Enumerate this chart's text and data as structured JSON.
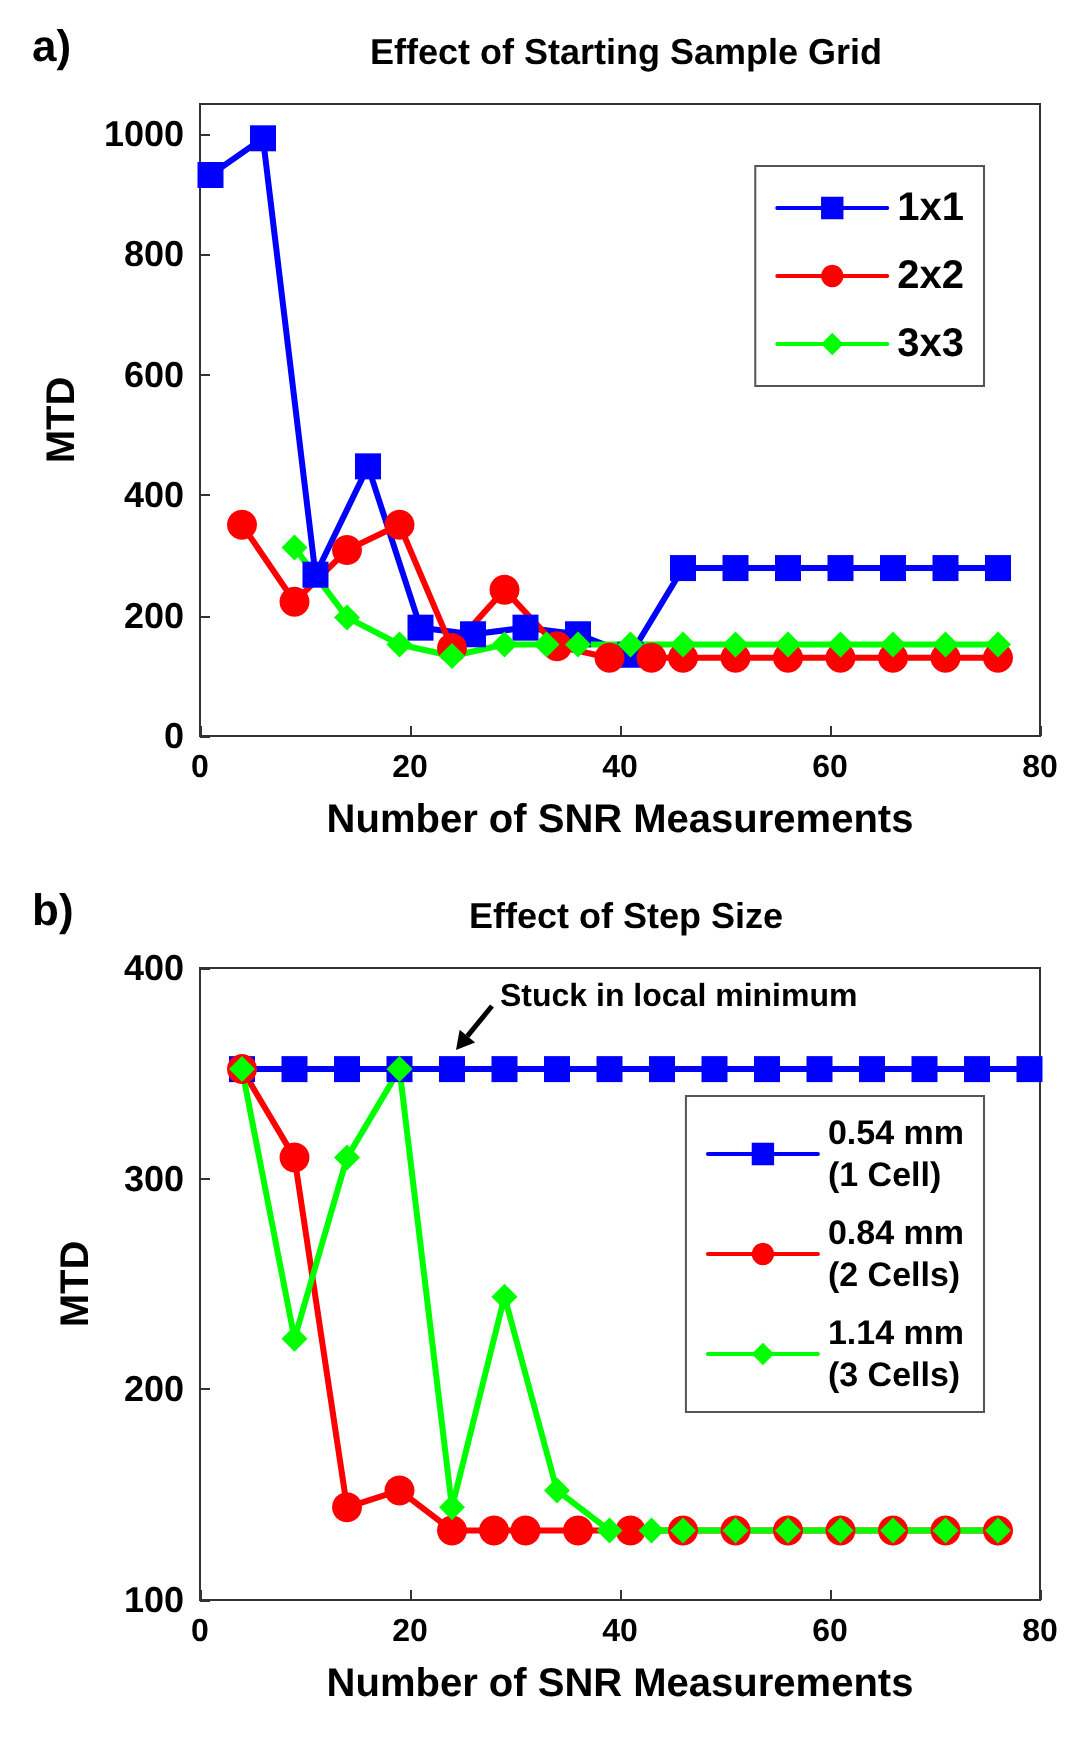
{
  "chart_data": [
    {
      "type": "line",
      "title": "Effect of Starting Sample Grid",
      "xlabel": "Number of SNR Measurements",
      "ylabel": "MTD",
      "xlim": [
        0,
        80
      ],
      "xticks": [
        0,
        20,
        40,
        60,
        80
      ],
      "ylim": [
        0,
        1050
      ],
      "yticks": [
        0,
        200,
        400,
        600,
        800,
        {
          "value": 1000,
          "label": "1000"
        }
      ],
      "grid": false,
      "legend": "top right",
      "annotations": [
        "a)"
      ],
      "series": [
        {
          "name": "1x1",
          "color": "#0000ff",
          "marker": "square",
          "x": [
            1,
            6,
            11,
            16,
            21,
            26,
            31,
            36,
            41,
            46,
            51,
            56,
            61,
            66,
            71,
            76
          ],
          "values": [
            932,
            993,
            268,
            448,
            180,
            169,
            180,
            169,
            135,
            279,
            279,
            279,
            279,
            279,
            279,
            279
          ]
        },
        {
          "name": "2x2",
          "color": "#ff0000",
          "marker": "circle",
          "x": [
            4,
            9,
            14,
            19,
            24,
            29,
            34,
            39,
            43,
            46,
            51,
            56,
            61,
            66,
            71,
            76
          ],
          "values": [
            351,
            223,
            309,
            351,
            146,
            243,
            149,
            130,
            130,
            130,
            130,
            130,
            130,
            130,
            130,
            130
          ]
        },
        {
          "name": "3x3",
          "color": "#00ff00",
          "marker": "diamond",
          "x": [
            9,
            14,
            19,
            24,
            29,
            33,
            36,
            41,
            46,
            51,
            56,
            61,
            66,
            71,
            76
          ],
          "values": [
            313,
            197,
            152,
            133,
            152,
            152,
            152,
            152,
            152,
            152,
            152,
            152,
            152,
            152,
            152
          ]
        }
      ]
    },
    {
      "type": "line",
      "title": "Effect of Step Size",
      "xlabel": "Number of SNR Measurements",
      "ylabel": "MTD",
      "xlim": [
        0,
        80
      ],
      "xticks": [
        0,
        20,
        40,
        60,
        80
      ],
      "ylim": [
        100,
        400
      ],
      "yticks": [
        100,
        200,
        300,
        400
      ],
      "grid": false,
      "legend": "right",
      "annotations": [
        "b)",
        {
          "text": "Stuck in local minimum",
          "x": 24,
          "y": 352
        }
      ],
      "series": [
        {
          "name": "0.54 mm\n(1 Cell)",
          "color": "#0000ff",
          "marker": "square",
          "x": [
            4,
            9,
            14,
            19,
            24,
            29,
            34,
            39,
            44,
            49,
            54,
            59,
            64,
            69,
            74,
            79
          ],
          "values": [
            352,
            352,
            352,
            352,
            352,
            352,
            352,
            352,
            352,
            352,
            352,
            352,
            352,
            352,
            352,
            352
          ]
        },
        {
          "name": "0.84 mm\n(2 Cells)",
          "color": "#ff0000",
          "marker": "circle",
          "x": [
            4,
            9,
            14,
            19,
            24,
            28,
            31,
            36,
            41,
            46,
            51,
            56,
            61,
            66,
            71,
            76
          ],
          "values": [
            352,
            310,
            144,
            152,
            133,
            133,
            133,
            133,
            133,
            133,
            133,
            133,
            133,
            133,
            133,
            133
          ]
        },
        {
          "name": "1.14 mm\n(3 Cells)",
          "color": "#00ff00",
          "marker": "diamond",
          "x": [
            4,
            9,
            14,
            19,
            24,
            29,
            34,
            39,
            43,
            46,
            51,
            56,
            61,
            66,
            71,
            76
          ],
          "values": [
            352,
            224,
            310,
            352,
            144,
            244,
            152,
            133,
            133,
            133,
            133,
            133,
            133,
            133,
            133,
            133
          ]
        }
      ]
    }
  ]
}
